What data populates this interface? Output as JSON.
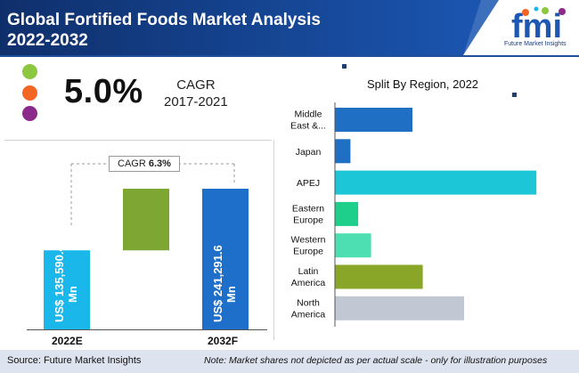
{
  "header": {
    "title_line1": "Global Fortified Foods Market Analysis",
    "title_line2": "2022-2032",
    "brand": "fmi",
    "brand_tagline": "Future Market Insights",
    "band_color_left": "#0f2f6b",
    "band_color_right": "#1b57b3"
  },
  "left_panel": {
    "dots": [
      "#8dc63f",
      "#f26522",
      "#8b2a8b"
    ],
    "cagr_value": "5.0%",
    "cagr_label": "CAGR",
    "cagr_period": "2017-2021",
    "forecast_cagr_prefix": "CAGR ",
    "forecast_cagr_value": "6.3%"
  },
  "chart_data": [
    {
      "type": "bar",
      "categories": [
        "2022E",
        "2032F"
      ],
      "values": [
        135590.4,
        241291.6
      ],
      "data_labels": [
        "US$ 135,590.4 Mn",
        "US$ 241,291.6 Mn"
      ],
      "colors": [
        "#1ab7ea",
        "#1d6fc9"
      ],
      "increment_color": "#7ea632",
      "annotation": "CAGR 6.3%"
    },
    {
      "type": "bar",
      "orientation": "horizontal",
      "title": "Split By Region, 2022",
      "categories": [
        [
          "Middle",
          "East &..."
        ],
        [
          "Japan"
        ],
        [
          "APEJ"
        ],
        [
          "Eastern",
          "Europe"
        ],
        [
          "Western",
          "Europe"
        ],
        [
          "Latin",
          "America"
        ],
        [
          "North",
          "America"
        ]
      ],
      "values": [
        30,
        6,
        78,
        9,
        14,
        34,
        50
      ],
      "colors": [
        "#1f6fc4",
        "#1f6fc4",
        "#1cc6d6",
        "#1ecf8b",
        "#4ddfb1",
        "#8aa628",
        "#c1c8d4"
      ],
      "xlim": [
        0,
        80
      ]
    }
  ],
  "footer": {
    "source": "Source: Future Market Insights",
    "note": "Note: Market shares not depicted as per actual scale - only for illustration purposes"
  }
}
